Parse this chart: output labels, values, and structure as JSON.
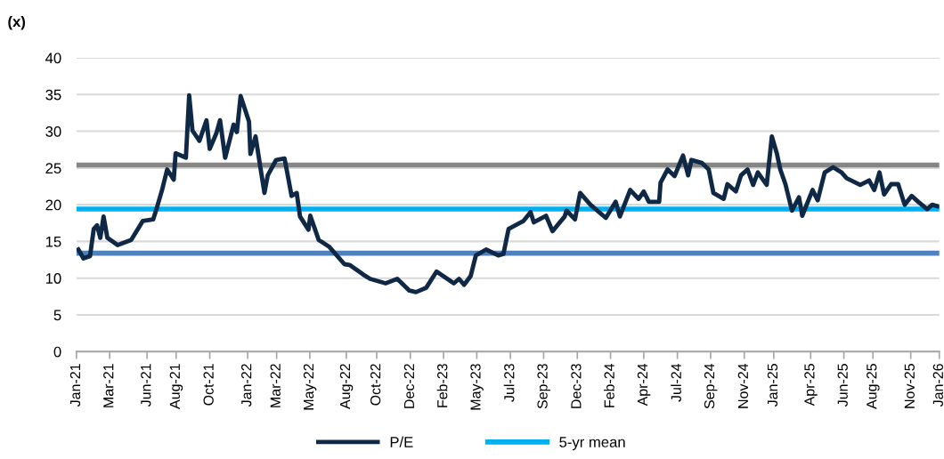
{
  "chart_data": {
    "type": "line",
    "ylabel": "(x)",
    "x": [
      "2021-01-05",
      "2021-01-16",
      "2021-01-30",
      "2021-02-07",
      "2021-02-14",
      "2021-02-21",
      "2021-02-28",
      "2021-03-08",
      "2021-03-30",
      "2021-04-28",
      "2021-05-23",
      "2021-06-14",
      "2021-06-22",
      "2021-07-03",
      "2021-07-14",
      "2021-07-28",
      "2021-08-01",
      "2021-08-23",
      "2021-08-30",
      "2021-09-06",
      "2021-09-21",
      "2021-10-06",
      "2021-10-13",
      "2021-10-27",
      "2021-11-04",
      "2021-11-15",
      "2021-12-03",
      "2021-12-10",
      "2021-12-18",
      "2022-01-05",
      "2022-01-08",
      "2022-01-19",
      "2022-01-30",
      "2022-02-07",
      "2022-02-14",
      "2022-03-04",
      "2022-03-22",
      "2022-04-06",
      "2022-04-17",
      "2022-04-24",
      "2022-05-12",
      "2022-05-16",
      "2022-06-03",
      "2022-06-25",
      "2022-07-28",
      "2022-08-08",
      "2022-09-06",
      "2022-09-21",
      "2022-10-24",
      "2022-11-18",
      "2022-12-14",
      "2022-12-28",
      "2023-01-19",
      "2023-02-10",
      "2023-03-19",
      "2023-03-30",
      "2023-04-10",
      "2023-04-24",
      "2023-05-05",
      "2023-05-27",
      "2023-06-22",
      "2023-07-03",
      "2023-07-14",
      "2023-08-15",
      "2023-08-30",
      "2023-09-06",
      "2023-10-02",
      "2023-10-16",
      "2023-11-11",
      "2023-11-15",
      "2023-12-03",
      "2023-12-14",
      "2024-01-05",
      "2024-02-07",
      "2024-02-28",
      "2024-03-08",
      "2024-03-30",
      "2024-04-17",
      "2024-04-28",
      "2024-05-09",
      "2024-05-31",
      "2024-06-03",
      "2024-06-18",
      "2024-07-03",
      "2024-07-21",
      "2024-08-01",
      "2024-08-08",
      "2024-08-30",
      "2024-09-14",
      "2024-09-24",
      "2024-10-16",
      "2024-10-24",
      "2024-11-11",
      "2024-11-22",
      "2024-12-06",
      "2024-12-18",
      "2024-12-28",
      "2025-01-16",
      "2025-01-27",
      "2025-02-07",
      "2025-02-14",
      "2025-02-25",
      "2025-03-11",
      "2025-03-26",
      "2025-04-02",
      "2025-04-24",
      "2025-05-05",
      "2025-05-20",
      "2025-06-07",
      "2025-06-25",
      "2025-07-06",
      "2025-08-04",
      "2025-08-23",
      "2025-09-03",
      "2025-09-14",
      "2025-09-24",
      "2025-10-09",
      "2025-10-24",
      "2025-11-07",
      "2025-11-22",
      "2025-12-06",
      "2025-12-25",
      "2026-01-05",
      "2026-01-16"
    ],
    "series": [
      {
        "name": "P/E",
        "color": "#0f2846",
        "values": [
          13.9,
          12.7,
          13.0,
          16.7,
          17.2,
          15.5,
          18.4,
          15.5,
          14.5,
          15.2,
          17.8,
          18.0,
          19.6,
          22.0,
          24.8,
          23.4,
          27.0,
          26.4,
          34.9,
          30.1,
          28.7,
          31.5,
          27.6,
          29.7,
          31.5,
          26.4,
          30.9,
          29.9,
          34.8,
          31.3,
          26.9,
          29.3,
          24.8,
          21.6,
          24.0,
          26.1,
          26.3,
          21.2,
          21.6,
          18.4,
          16.6,
          18.5,
          15.2,
          14.3,
          11.9,
          11.8,
          10.5,
          9.9,
          9.3,
          9.9,
          8.3,
          8.1,
          8.7,
          10.9,
          9.3,
          9.9,
          9.1,
          10.3,
          13.1,
          13.9,
          13.1,
          13.3,
          16.7,
          17.8,
          19.0,
          17.6,
          18.5,
          16.4,
          18.4,
          19.2,
          18.0,
          21.6,
          20.0,
          18.2,
          20.4,
          18.4,
          22.0,
          20.8,
          21.8,
          20.4,
          20.4,
          23.0,
          24.8,
          23.9,
          26.7,
          24.0,
          26.1,
          25.7,
          24.8,
          21.6,
          20.8,
          22.8,
          21.8,
          24.0,
          24.8,
          22.7,
          24.4,
          22.7,
          29.3,
          26.9,
          24.8,
          22.8,
          19.2,
          21.0,
          18.5,
          22.0,
          20.6,
          24.4,
          25.1,
          24.4,
          23.6,
          22.7,
          23.3,
          22.0,
          24.4,
          21.4,
          22.8,
          22.8,
          20.0,
          21.2,
          20.4,
          19.4,
          20.0,
          19.8
        ]
      }
    ],
    "ref_lines": [
      {
        "axis": "y",
        "value": 25.4,
        "color": "#858585"
      },
      {
        "axis": "y",
        "value": 19.4,
        "label": "5-yr mean",
        "color": "#00b0f0"
      },
      {
        "axis": "y",
        "value": 13.4,
        "color": "#4f81bd"
      }
    ],
    "xlim": [
      "2021-01-01",
      "2026-01-20"
    ],
    "xticks": [
      {
        "value": "2021-01-01",
        "label": "Jan-21"
      },
      {
        "value": "2021-03-13",
        "label": "Mar-21"
      },
      {
        "value": "2021-06-01",
        "label": "Jun-21"
      },
      {
        "value": "2021-08-02",
        "label": "Aug-21"
      },
      {
        "value": "2021-10-13",
        "label": "Oct-21"
      },
      {
        "value": "2022-01-02",
        "label": "Jan-22"
      },
      {
        "value": "2022-03-05",
        "label": "Mar-22"
      },
      {
        "value": "2022-05-15",
        "label": "May-22"
      },
      {
        "value": "2022-08-01",
        "label": "Aug-22"
      },
      {
        "value": "2022-10-05",
        "label": "Oct-22"
      },
      {
        "value": "2022-12-16",
        "label": "Dec-22"
      },
      {
        "value": "2023-02-25",
        "label": "Feb-23"
      },
      {
        "value": "2023-05-07",
        "label": "May-23"
      },
      {
        "value": "2023-07-18",
        "label": "Jul-23"
      },
      {
        "value": "2023-09-27",
        "label": "Sep-23"
      },
      {
        "value": "2023-12-08",
        "label": "Dec-23"
      },
      {
        "value": "2024-02-17",
        "label": "Feb-24"
      },
      {
        "value": "2024-04-28",
        "label": "Apr-24"
      },
      {
        "value": "2024-07-09",
        "label": "Jul-24"
      },
      {
        "value": "2024-09-18",
        "label": "Sep-24"
      },
      {
        "value": "2024-11-29",
        "label": "Nov-24"
      },
      {
        "value": "2025-01-31",
        "label": "Jan-25"
      },
      {
        "value": "2025-04-20",
        "label": "Apr-25"
      },
      {
        "value": "2025-06-30",
        "label": "Jun-25"
      },
      {
        "value": "2025-08-31",
        "label": "Aug-25"
      },
      {
        "value": "2025-11-20",
        "label": "Nov-25"
      },
      {
        "value": "2026-01-20",
        "label": "Jan-26"
      }
    ],
    "ylim": [
      0,
      40
    ],
    "yticks": [
      0,
      5,
      10,
      15,
      20,
      25,
      30,
      35,
      40
    ],
    "grid": "y",
    "legend": "bottom",
    "marker": "none",
    "line_style": "solid"
  }
}
